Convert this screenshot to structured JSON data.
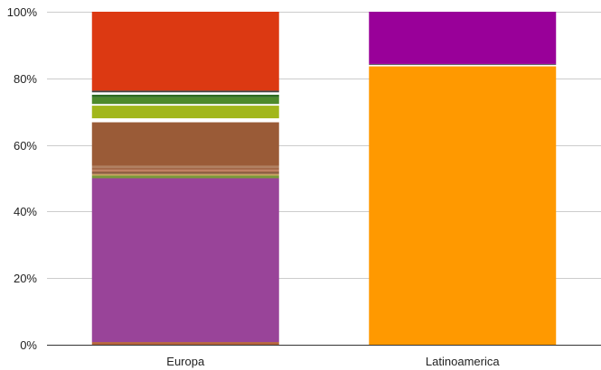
{
  "chart_data": {
    "type": "bar",
    "stacked": true,
    "percent": true,
    "categories": [
      "Europa",
      "Latinoamerica"
    ],
    "y_ticks": [
      "0%",
      "20%",
      "40%",
      "60%",
      "80%",
      "100%"
    ],
    "ylim": [
      0,
      100
    ],
    "grid": true,
    "legend": "none",
    "segments": [
      [
        {
          "value": 0.8,
          "color": "#b5643c"
        },
        {
          "value": 49.2,
          "color": "#994499"
        },
        {
          "value": 0.8,
          "color": "#7a9a3a"
        },
        {
          "value": 0.5,
          "color": "#c9a060"
        },
        {
          "value": 0.7,
          "color": "#8b5a3c"
        },
        {
          "value": 0.5,
          "color": "#c27a5a"
        },
        {
          "value": 0.8,
          "color": "#a46a4a"
        },
        {
          "value": 0.5,
          "color": "#b08060"
        },
        {
          "value": 13.0,
          "color": "#9a5b37"
        },
        {
          "value": 1.2,
          "color": "#ffffff"
        },
        {
          "value": 3.8,
          "color": "#a2b71b"
        },
        {
          "value": 0.5,
          "color": "#ffffff"
        },
        {
          "value": 2.0,
          "color": "#4e8a2c"
        },
        {
          "value": 0.8,
          "color": "#2e6b22"
        },
        {
          "value": 0.7,
          "color": "#ffffff"
        },
        {
          "value": 0.5,
          "color": "#444444"
        },
        {
          "value": 23.7,
          "color": "#dc3912"
        }
      ],
      [
        {
          "value": 83.6,
          "color": "#ff9900"
        },
        {
          "value": 0.4,
          "color": "#ffffff"
        },
        {
          "value": 0.3,
          "color": "#666666"
        },
        {
          "value": 15.7,
          "color": "#990099"
        }
      ]
    ]
  }
}
